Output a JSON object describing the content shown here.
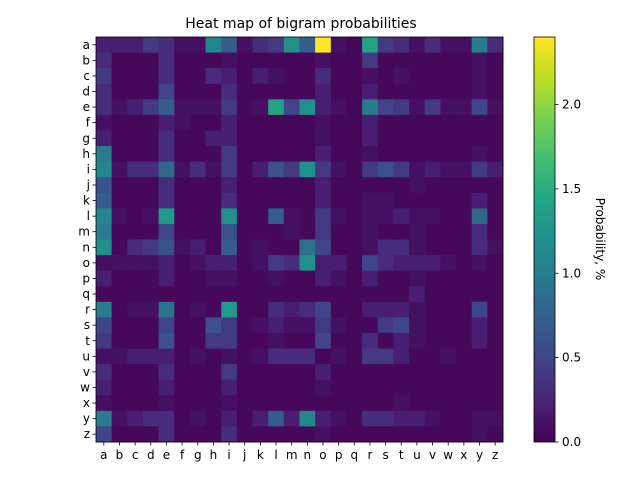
{
  "chart_data": {
    "type": "heatmap",
    "title": "Heat map of bigram probabilities",
    "xlabel": "",
    "ylabel": "",
    "x_categories": [
      "a",
      "b",
      "c",
      "d",
      "e",
      "f",
      "g",
      "h",
      "i",
      "j",
      "k",
      "l",
      "m",
      "n",
      "o",
      "p",
      "q",
      "r",
      "s",
      "t",
      "u",
      "v",
      "w",
      "x",
      "y",
      "z"
    ],
    "y_categories": [
      "a",
      "b",
      "c",
      "d",
      "e",
      "f",
      "g",
      "h",
      "i",
      "j",
      "k",
      "l",
      "m",
      "n",
      "o",
      "p",
      "q",
      "r",
      "s",
      "t",
      "u",
      "v",
      "w",
      "x",
      "y",
      "z"
    ],
    "values": [
      [
        0.2,
        0.2,
        0.2,
        0.4,
        0.3,
        0.1,
        0.1,
        1.1,
        0.7,
        0.1,
        0.3,
        0.4,
        1.2,
        0.7,
        2.4,
        0.1,
        0.05,
        1.4,
        0.4,
        0.3,
        0.1,
        0.3,
        0.1,
        0.1,
        1.0,
        0.3
      ],
      [
        0.3,
        0.05,
        0.05,
        0.05,
        0.3,
        0.05,
        0.05,
        0.05,
        0.1,
        0.05,
        0.05,
        0.05,
        0.05,
        0.05,
        0.1,
        0.05,
        0.05,
        0.4,
        0.05,
        0.05,
        0.05,
        0.05,
        0.05,
        0.05,
        0.1,
        0.05
      ],
      [
        0.4,
        0.05,
        0.05,
        0.05,
        0.3,
        0.05,
        0.05,
        0.3,
        0.2,
        0.05,
        0.2,
        0.1,
        0.05,
        0.05,
        0.3,
        0.05,
        0.05,
        0.1,
        0.05,
        0.1,
        0.05,
        0.05,
        0.05,
        0.05,
        0.1,
        0.05
      ],
      [
        0.3,
        0.05,
        0.05,
        0.05,
        0.5,
        0.05,
        0.05,
        0.05,
        0.3,
        0.05,
        0.05,
        0.05,
        0.05,
        0.05,
        0.2,
        0.05,
        0.05,
        0.2,
        0.05,
        0.05,
        0.05,
        0.05,
        0.05,
        0.05,
        0.1,
        0.05
      ],
      [
        0.3,
        0.1,
        0.2,
        0.4,
        0.7,
        0.1,
        0.1,
        0.1,
        0.4,
        0.05,
        0.1,
        1.4,
        0.5,
        1.2,
        0.2,
        0.1,
        0.05,
        1.0,
        0.5,
        0.4,
        0.1,
        0.4,
        0.1,
        0.1,
        0.5,
        0.1
      ],
      [
        0.1,
        0.05,
        0.05,
        0.05,
        0.2,
        0.1,
        0.05,
        0.05,
        0.2,
        0.05,
        0.05,
        0.05,
        0.05,
        0.05,
        0.1,
        0.05,
        0.05,
        0.2,
        0.05,
        0.05,
        0.05,
        0.05,
        0.05,
        0.05,
        0.05,
        0.05
      ],
      [
        0.2,
        0.05,
        0.05,
        0.05,
        0.3,
        0.05,
        0.05,
        0.2,
        0.2,
        0.05,
        0.05,
        0.05,
        0.05,
        0.05,
        0.1,
        0.05,
        0.05,
        0.2,
        0.05,
        0.05,
        0.05,
        0.05,
        0.05,
        0.05,
        0.05,
        0.05
      ],
      [
        1.0,
        0.05,
        0.05,
        0.05,
        0.3,
        0.05,
        0.05,
        0.05,
        0.4,
        0.05,
        0.05,
        0.05,
        0.05,
        0.05,
        0.2,
        0.05,
        0.05,
        0.1,
        0.05,
        0.05,
        0.05,
        0.05,
        0.05,
        0.05,
        0.1,
        0.05
      ],
      [
        1.1,
        0.1,
        0.3,
        0.3,
        0.8,
        0.1,
        0.3,
        0.1,
        0.4,
        0.05,
        0.2,
        0.6,
        0.4,
        1.2,
        0.4,
        0.1,
        0.05,
        0.4,
        0.6,
        0.4,
        0.1,
        0.2,
        0.1,
        0.1,
        0.4,
        0.2
      ],
      [
        0.6,
        0.05,
        0.05,
        0.05,
        0.3,
        0.05,
        0.05,
        0.05,
        0.2,
        0.05,
        0.05,
        0.05,
        0.05,
        0.05,
        0.2,
        0.05,
        0.05,
        0.05,
        0.05,
        0.05,
        0.1,
        0.05,
        0.05,
        0.05,
        0.05,
        0.05
      ],
      [
        0.7,
        0.05,
        0.05,
        0.05,
        0.3,
        0.05,
        0.05,
        0.05,
        0.3,
        0.05,
        0.05,
        0.05,
        0.05,
        0.05,
        0.2,
        0.05,
        0.05,
        0.1,
        0.1,
        0.05,
        0.05,
        0.05,
        0.05,
        0.05,
        0.2,
        0.05
      ],
      [
        1.1,
        0.1,
        0.05,
        0.1,
        1.3,
        0.05,
        0.05,
        0.05,
        1.2,
        0.05,
        0.05,
        0.7,
        0.1,
        0.05,
        0.4,
        0.1,
        0.05,
        0.1,
        0.1,
        0.2,
        0.1,
        0.1,
        0.05,
        0.05,
        0.8,
        0.05
      ],
      [
        1.0,
        0.05,
        0.05,
        0.05,
        0.5,
        0.05,
        0.05,
        0.05,
        0.6,
        0.05,
        0.05,
        0.05,
        0.1,
        0.05,
        0.4,
        0.05,
        0.05,
        0.1,
        0.05,
        0.05,
        0.1,
        0.05,
        0.05,
        0.05,
        0.3,
        0.05
      ],
      [
        1.2,
        0.05,
        0.3,
        0.4,
        0.6,
        0.1,
        0.2,
        0.05,
        0.7,
        0.05,
        0.1,
        0.05,
        0.05,
        0.9,
        0.5,
        0.05,
        0.05,
        0.1,
        0.3,
        0.3,
        0.1,
        0.05,
        0.05,
        0.05,
        0.3,
        0.1
      ],
      [
        0.1,
        0.1,
        0.1,
        0.1,
        0.2,
        0.05,
        0.1,
        0.2,
        0.2,
        0.05,
        0.1,
        0.4,
        0.3,
        1.2,
        0.2,
        0.2,
        0.05,
        0.5,
        0.3,
        0.2,
        0.2,
        0.2,
        0.1,
        0.05,
        0.1,
        0.05
      ],
      [
        0.2,
        0.05,
        0.05,
        0.05,
        0.2,
        0.05,
        0.05,
        0.1,
        0.1,
        0.05,
        0.05,
        0.1,
        0.05,
        0.05,
        0.2,
        0.1,
        0.05,
        0.2,
        0.05,
        0.05,
        0.1,
        0.05,
        0.05,
        0.05,
        0.05,
        0.05
      ],
      [
        0.05,
        0.05,
        0.05,
        0.05,
        0.05,
        0.05,
        0.05,
        0.05,
        0.05,
        0.05,
        0.05,
        0.05,
        0.05,
        0.05,
        0.05,
        0.05,
        0.05,
        0.05,
        0.05,
        0.05,
        0.2,
        0.05,
        0.05,
        0.05,
        0.05,
        0.05
      ],
      [
        1.0,
        0.05,
        0.1,
        0.1,
        0.9,
        0.05,
        0.1,
        0.05,
        1.3,
        0.05,
        0.05,
        0.3,
        0.2,
        0.3,
        0.5,
        0.05,
        0.05,
        0.2,
        0.2,
        0.2,
        0.1,
        0.05,
        0.05,
        0.05,
        0.5,
        0.05
      ],
      [
        0.5,
        0.05,
        0.05,
        0.05,
        0.5,
        0.05,
        0.05,
        0.6,
        0.4,
        0.05,
        0.1,
        0.2,
        0.1,
        0.1,
        0.4,
        0.1,
        0.05,
        0.05,
        0.4,
        0.5,
        0.1,
        0.05,
        0.05,
        0.05,
        0.2,
        0.05
      ],
      [
        0.4,
        0.05,
        0.05,
        0.05,
        0.6,
        0.05,
        0.05,
        0.4,
        0.4,
        0.05,
        0.05,
        0.1,
        0.05,
        0.05,
        0.5,
        0.05,
        0.05,
        0.3,
        0.05,
        0.2,
        0.1,
        0.05,
        0.05,
        0.05,
        0.2,
        0.05
      ],
      [
        0.1,
        0.1,
        0.2,
        0.2,
        0.2,
        0.05,
        0.1,
        0.05,
        0.1,
        0.05,
        0.1,
        0.3,
        0.3,
        0.3,
        0.05,
        0.1,
        0.05,
        0.4,
        0.4,
        0.2,
        0.05,
        0.05,
        0.1,
        0.05,
        0.05,
        0.05
      ],
      [
        0.3,
        0.05,
        0.05,
        0.05,
        0.3,
        0.05,
        0.05,
        0.05,
        0.4,
        0.05,
        0.05,
        0.05,
        0.05,
        0.05,
        0.2,
        0.05,
        0.05,
        0.05,
        0.05,
        0.05,
        0.05,
        0.05,
        0.05,
        0.05,
        0.05,
        0.05
      ],
      [
        0.2,
        0.05,
        0.05,
        0.05,
        0.2,
        0.05,
        0.05,
        0.05,
        0.2,
        0.05,
        0.05,
        0.05,
        0.05,
        0.05,
        0.1,
        0.05,
        0.05,
        0.05,
        0.05,
        0.05,
        0.05,
        0.05,
        0.05,
        0.05,
        0.05,
        0.05
      ],
      [
        0.1,
        0.05,
        0.05,
        0.05,
        0.1,
        0.05,
        0.05,
        0.05,
        0.1,
        0.05,
        0.05,
        0.05,
        0.05,
        0.05,
        0.05,
        0.05,
        0.05,
        0.05,
        0.05,
        0.1,
        0.05,
        0.05,
        0.05,
        0.05,
        0.05,
        0.05
      ],
      [
        1.0,
        0.1,
        0.2,
        0.3,
        0.3,
        0.05,
        0.1,
        0.05,
        0.2,
        0.05,
        0.2,
        0.7,
        0.2,
        1.1,
        0.2,
        0.1,
        0.05,
        0.3,
        0.3,
        0.2,
        0.2,
        0.1,
        0.05,
        0.05,
        0.1,
        0.1
      ],
      [
        0.5,
        0.05,
        0.05,
        0.05,
        0.3,
        0.05,
        0.05,
        0.05,
        0.3,
        0.05,
        0.05,
        0.05,
        0.05,
        0.05,
        0.1,
        0.05,
        0.05,
        0.05,
        0.05,
        0.05,
        0.05,
        0.05,
        0.05,
        0.05,
        0.1,
        0.05
      ]
    ],
    "colormap": "viridis",
    "colorbar": {
      "label": "Probability, %",
      "range": [
        0,
        2.4
      ],
      "ticks": [
        0.0,
        0.5,
        1.0,
        1.5,
        2.0
      ],
      "tick_labels": [
        "0.0",
        "0.5",
        "1.0",
        "1.5",
        "2.0"
      ]
    },
    "grid": false,
    "legend": "none"
  }
}
